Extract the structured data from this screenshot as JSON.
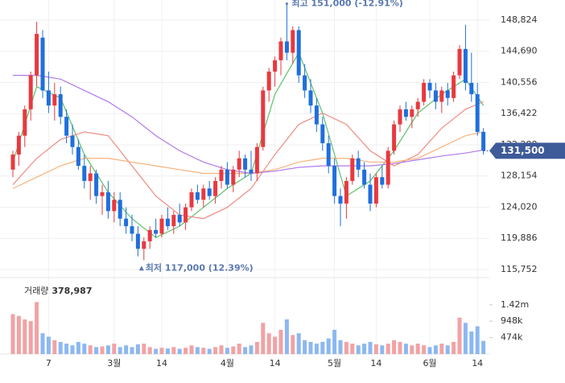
{
  "chart_data": {
    "type": "candlestick",
    "up_color": "#e8393f",
    "down_color": "#1f6fdc",
    "volume_up_color": "#f2a2a4",
    "volume_down_color": "#8cb8f0",
    "grid": true,
    "categories": [
      null,
      null,
      null,
      null,
      null,
      null,
      "7",
      null,
      null,
      null,
      null,
      null,
      null,
      null,
      null,
      null,
      null,
      "3월",
      null,
      null,
      null,
      null,
      null,
      null,
      null,
      "14",
      null,
      null,
      null,
      null,
      null,
      null,
      null,
      null,
      null,
      null,
      "4월",
      null,
      null,
      null,
      null,
      null,
      null,
      null,
      "14",
      null,
      null,
      null,
      null,
      null,
      null,
      null,
      null,
      null,
      "5월",
      null,
      null,
      null,
      null,
      null,
      null,
      "14",
      null,
      null,
      null,
      null,
      null,
      null,
      null,
      null,
      "6월",
      null,
      null,
      null,
      null,
      null,
      null,
      null,
      "14",
      null
    ],
    "ohlc": [
      [
        129000,
        131500,
        128000,
        131000
      ],
      [
        131000,
        134000,
        129500,
        133500
      ],
      [
        133500,
        137500,
        132000,
        137000
      ],
      [
        137000,
        142000,
        135500,
        141500
      ],
      [
        141500,
        148600,
        140000,
        147000
      ],
      [
        146500,
        147500,
        138500,
        139500
      ],
      [
        139500,
        142000,
        136500,
        137500
      ],
      [
        137500,
        140500,
        135500,
        139000
      ],
      [
        139000,
        140000,
        135000,
        136000
      ],
      [
        136000,
        137000,
        132500,
        133500
      ],
      [
        133500,
        135000,
        131000,
        132000
      ],
      [
        132000,
        133000,
        129000,
        129500
      ],
      [
        129500,
        131000,
        126500,
        127500
      ],
      [
        127500,
        129500,
        125000,
        128500
      ],
      [
        128500,
        129000,
        124500,
        125500
      ],
      [
        125500,
        127000,
        123000,
        126000
      ],
      [
        126000,
        127500,
        122500,
        123500
      ],
      [
        123500,
        126000,
        122000,
        125000
      ],
      [
        125000,
        126000,
        121500,
        122500
      ],
      [
        122500,
        124000,
        120500,
        121500
      ],
      [
        121500,
        123000,
        119500,
        120500
      ],
      [
        120500,
        121500,
        117500,
        118500
      ],
      [
        118500,
        120000,
        117000,
        119500
      ],
      [
        119500,
        121500,
        118500,
        121000
      ],
      [
        121000,
        122500,
        120000,
        120500
      ],
      [
        120500,
        123000,
        120000,
        122500
      ],
      [
        122500,
        124000,
        121000,
        121500
      ],
      [
        121500,
        123500,
        120500,
        123000
      ],
      [
        123000,
        124500,
        121500,
        122000
      ],
      [
        122000,
        124500,
        121000,
        124000
      ],
      [
        124000,
        126500,
        123500,
        126000
      ],
      [
        126000,
        127000,
        124500,
        125000
      ],
      [
        125000,
        127000,
        124000,
        126500
      ],
      [
        126500,
        127500,
        125000,
        125500
      ],
      [
        125500,
        128000,
        124500,
        127500
      ],
      [
        127500,
        129500,
        126500,
        129000
      ],
      [
        129000,
        130000,
        126500,
        127000
      ],
      [
        127000,
        129500,
        126000,
        129000
      ],
      [
        129000,
        131500,
        128000,
        130500
      ],
      [
        130500,
        131000,
        128000,
        129000
      ],
      [
        129000,
        131500,
        127500,
        128500
      ],
      [
        128500,
        132500,
        127500,
        132000
      ],
      [
        132000,
        140000,
        131500,
        139500
      ],
      [
        139500,
        142500,
        138000,
        142000
      ],
      [
        142000,
        144000,
        140000,
        143500
      ],
      [
        143500,
        146500,
        141500,
        146000
      ],
      [
        146000,
        151000,
        143500,
        144500
      ],
      [
        144500,
        148000,
        143000,
        147500
      ],
      [
        147500,
        148000,
        140500,
        141500
      ],
      [
        141500,
        143000,
        138500,
        139500
      ],
      [
        139500,
        141000,
        136500,
        137500
      ],
      [
        137500,
        138500,
        134000,
        135000
      ],
      [
        135000,
        136000,
        131500,
        132500
      ],
      [
        132500,
        133500,
        128500,
        129500
      ],
      [
        129500,
        130500,
        124500,
        125500
      ],
      [
        125500,
        126500,
        121500,
        124500
      ],
      [
        124500,
        128000,
        122500,
        127500
      ],
      [
        127500,
        131000,
        127000,
        130500
      ],
      [
        130500,
        131500,
        128000,
        129000
      ],
      [
        129000,
        130000,
        126500,
        127000
      ],
      [
        127000,
        128500,
        123500,
        124500
      ],
      [
        124500,
        128500,
        124000,
        128000
      ],
      [
        128000,
        129500,
        126500,
        127000
      ],
      [
        127000,
        132000,
        126500,
        131500
      ],
      [
        131500,
        135500,
        131000,
        135000
      ],
      [
        135000,
        137500,
        134000,
        137000
      ],
      [
        137000,
        138000,
        135500,
        136000
      ],
      [
        136000,
        137500,
        134500,
        137000
      ],
      [
        137000,
        138500,
        136000,
        138000
      ],
      [
        138000,
        141000,
        137500,
        140500
      ],
      [
        140500,
        141000,
        138500,
        139500
      ],
      [
        139500,
        140500,
        137000,
        138000
      ],
      [
        138000,
        140000,
        136500,
        139500
      ],
      [
        139500,
        140500,
        137500,
        138500
      ],
      [
        138500,
        142000,
        138000,
        141500
      ],
      [
        141500,
        145500,
        141000,
        145000
      ],
      [
        145000,
        148200,
        139500,
        140500
      ],
      [
        140500,
        144500,
        138000,
        139000
      ],
      [
        139000,
        140500,
        133500,
        134000
      ],
      [
        134000,
        134500,
        131000,
        131500
      ]
    ],
    "volume": [
      1150000,
      1100000,
      1000000,
      950000,
      1500000,
      600000,
      500000,
      400000,
      350000,
      300000,
      250000,
      350000,
      300000,
      250000,
      200000,
      220000,
      250000,
      300000,
      200000,
      250000,
      200000,
      280000,
      300000,
      200000,
      150000,
      180000,
      160000,
      200000,
      150000,
      180000,
      250000,
      200000,
      180000,
      150000,
      200000,
      250000,
      180000,
      220000,
      300000,
      200000,
      250000,
      350000,
      900000,
      600000,
      500000,
      700000,
      1000000,
      550000,
      600000,
      400000,
      350000,
      300000,
      350000,
      450000,
      700000,
      400000,
      350000,
      300000,
      250000,
      300000,
      350000,
      280000,
      250000,
      300000,
      400000,
      350000,
      300000,
      250000,
      300000,
      250000,
      200000,
      250000,
      300000,
      250000,
      350000,
      1050000,
      900000,
      650000,
      800000,
      378987
    ],
    "moving_averages": [
      {
        "color": "#5cc26a",
        "x": [
          0,
          4,
          8,
          12,
          16,
          20,
          24,
          28,
          32,
          36,
          40,
          44,
          48,
          52,
          56,
          60,
          64,
          68,
          72,
          76,
          79
        ],
        "values": [
          130000,
          140000,
          138500,
          131000,
          126000,
          122500,
          120000,
          121500,
          124000,
          126500,
          128500,
          139000,
          144500,
          136500,
          125500,
          127500,
          131500,
          136500,
          139000,
          141000,
          137500
        ]
      },
      {
        "color": "#ef8a80",
        "x": [
          0,
          4,
          8,
          12,
          16,
          20,
          24,
          28,
          32,
          36,
          40,
          44,
          48,
          52,
          56,
          60,
          64,
          68,
          72,
          76,
          79
        ],
        "values": [
          127000,
          130500,
          133000,
          134000,
          133500,
          129500,
          125500,
          123000,
          122500,
          124000,
          126500,
          131000,
          135000,
          136500,
          135000,
          131500,
          129500,
          131000,
          134500,
          137000,
          138000
        ]
      },
      {
        "color": "#f5b27a",
        "x": [
          0,
          4,
          8,
          12,
          16,
          20,
          24,
          28,
          32,
          36,
          40,
          44,
          48,
          52,
          56,
          60,
          64,
          68,
          72,
          76,
          79
        ],
        "values": [
          126500,
          128000,
          129500,
          130500,
          130500,
          130000,
          129500,
          129000,
          128500,
          128500,
          128500,
          129000,
          130000,
          130500,
          130500,
          130000,
          130000,
          130500,
          132000,
          133500,
          134000
        ]
      },
      {
        "color": "#b07ae8",
        "x": [
          0,
          4,
          8,
          12,
          16,
          20,
          24,
          28,
          32,
          36,
          40,
          44,
          48,
          52,
          56,
          60,
          64,
          68,
          72,
          76,
          79
        ],
        "values": [
          141500,
          141500,
          141000,
          139500,
          138000,
          136000,
          133500,
          131500,
          130000,
          129000,
          128500,
          128800,
          129300,
          129500,
          129500,
          129500,
          129800,
          130300,
          130800,
          131200,
          131600
        ]
      }
    ],
    "ylim": [
      114685,
      151491
    ],
    "yticks": [
      {
        "value": 148824,
        "label": "148,824"
      },
      {
        "value": 144690,
        "label": "144,690"
      },
      {
        "value": 140556,
        "label": "140,556"
      },
      {
        "value": 136422,
        "label": "136,422"
      },
      {
        "value": 132288,
        "label": "132,288"
      },
      {
        "value": 128154,
        "label": "128,154"
      },
      {
        "value": 124020,
        "label": "124,020"
      },
      {
        "value": 119886,
        "label": "119,886"
      },
      {
        "value": 115752,
        "label": "115,752"
      }
    ],
    "volume_ylim": [
      0,
      2090000
    ],
    "volume_ticks": [
      {
        "value": 1420000,
        "label": "1.42m"
      },
      {
        "value": 948000,
        "label": "948k"
      },
      {
        "value": 474000,
        "label": "474k"
      }
    ],
    "last_price": {
      "value": 131500,
      "label": "131,500"
    },
    "high": {
      "index": 46,
      "value": 151000,
      "label": "최고 151,000 (-12.91%)"
    },
    "low": {
      "index": 22,
      "value": 117000,
      "label": "최저 117,000 (12.39%)"
    },
    "volume_title": "거래량",
    "volume_latest": {
      "value": 378987,
      "label": "378,987"
    }
  }
}
